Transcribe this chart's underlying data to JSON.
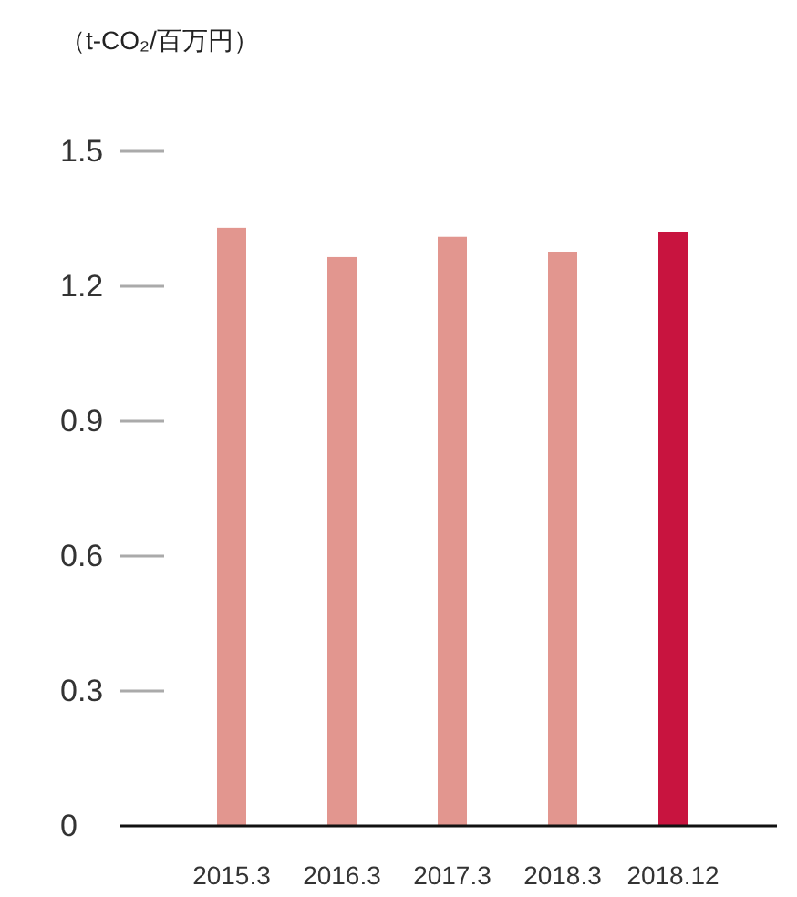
{
  "chart_data": {
    "type": "bar",
    "ylabel": "（t-CO₂/百万円）",
    "categories": [
      "2015.3",
      "2016.3",
      "2017.3",
      "2018.3",
      "2018.12"
    ],
    "values": [
      1.33,
      1.265,
      1.31,
      1.277,
      1.32
    ],
    "colors": [
      "#e2968f",
      "#e2968f",
      "#e2968f",
      "#e2968f",
      "#c8143f"
    ],
    "ylim": [
      0,
      1.5
    ],
    "yticks": [
      0,
      0.3,
      0.6,
      0.9,
      1.2,
      1.5
    ]
  }
}
